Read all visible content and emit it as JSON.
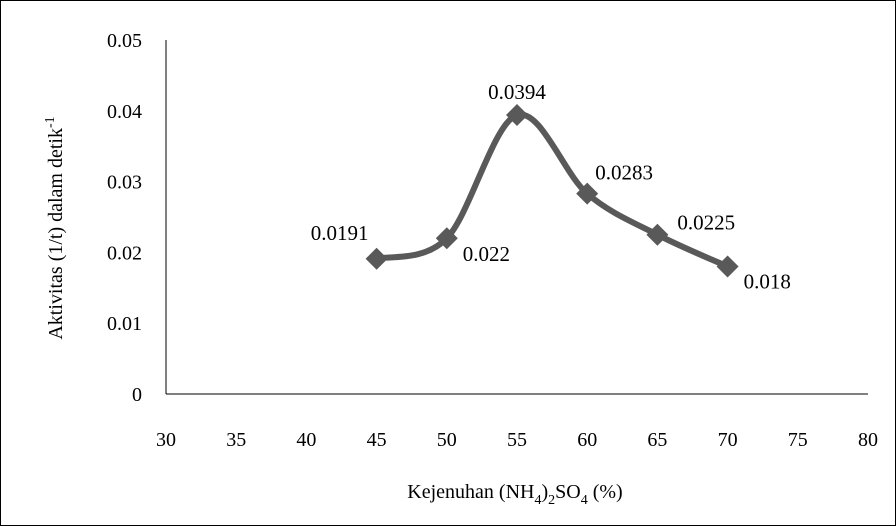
{
  "chart_data": {
    "type": "line",
    "smooth": true,
    "x": [
      45,
      50,
      55,
      60,
      65,
      70
    ],
    "series": [
      {
        "values": [
          0.0191,
          0.022,
          0.0394,
          0.0283,
          0.0225,
          0.018
        ]
      }
    ],
    "data_labels": [
      "0.0191",
      "0.022",
      "0.0394",
      "0.0283",
      "0.0225",
      "0.018"
    ],
    "x_ticks": [
      "30",
      "35",
      "40",
      "45",
      "50",
      "55",
      "60",
      "65",
      "70",
      "75",
      "80"
    ],
    "y_ticks": [
      "0",
      "0.01",
      "0.02",
      "0.03",
      "0.04",
      "0.05"
    ],
    "xlim": [
      30,
      80
    ],
    "ylim": [
      0,
      0.05
    ],
    "xlabel": {
      "main": "Kejenuhan (NH",
      "sub1": "4",
      "mid": ")",
      "sub2": "2",
      "tail": "SO",
      "sub3": "4",
      "end": "  (%)"
    },
    "ylabel": {
      "main": "Aktivitas (1/t)  dalam detik",
      "sup": "-1"
    },
    "grid": false,
    "legend": "none",
    "marker": "diamond",
    "line_color": "#595959"
  }
}
